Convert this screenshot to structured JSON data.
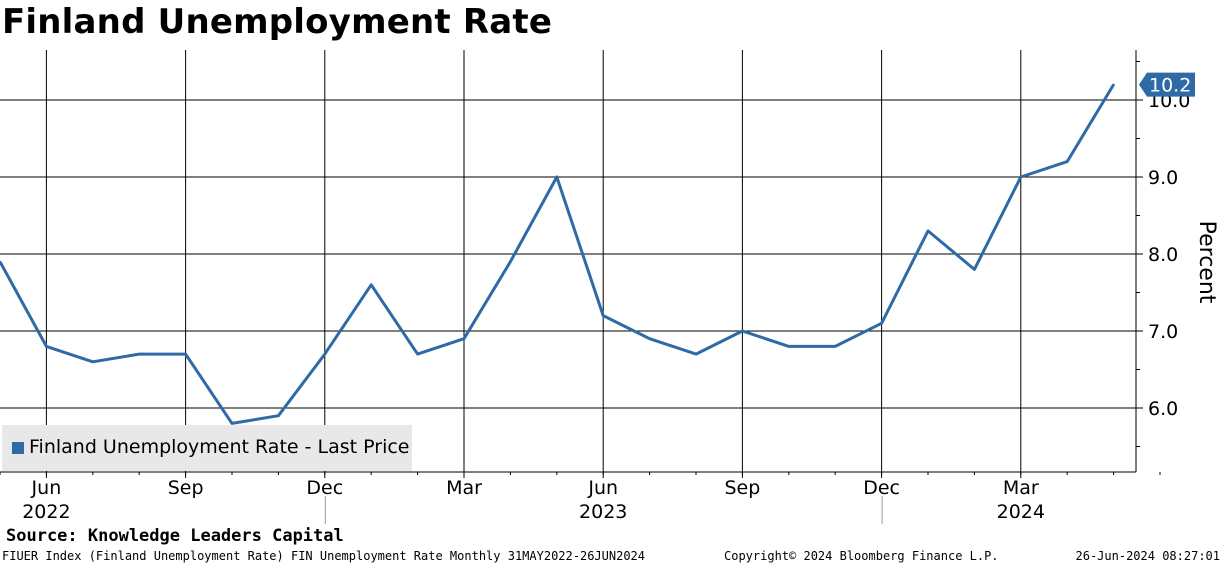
{
  "chart_data": {
    "type": "line",
    "title": "Finland Unemployment Rate",
    "ylabel": "Percent",
    "xlabel": "",
    "ylim": [
      5.2,
      10.6
    ],
    "y_ticks": [
      6.0,
      7.0,
      8.0,
      9.0,
      10.0
    ],
    "y_tick_labels": [
      "6.0",
      "7.0",
      "8.0",
      "9.0",
      "10.0"
    ],
    "x_ticks": [
      {
        "date": "2022-06",
        "label": "Jun",
        "year": "2022"
      },
      {
        "date": "2022-09",
        "label": "Sep",
        "year": ""
      },
      {
        "date": "2022-12",
        "label": "Dec",
        "year": ""
      },
      {
        "date": "2023-03",
        "label": "Mar",
        "year": ""
      },
      {
        "date": "2023-06",
        "label": "Jun",
        "year": "2023"
      },
      {
        "date": "2023-09",
        "label": "Sep",
        "year": ""
      },
      {
        "date": "2023-12",
        "label": "Dec",
        "year": ""
      },
      {
        "date": "2024-03",
        "label": "Mar",
        "year": "2024"
      }
    ],
    "grid": true,
    "legend_position": "bottom-left",
    "series": [
      {
        "name": "Finland Unemployment Rate - Last Price",
        "color": "#2e6aa6",
        "x": [
          "2022-05",
          "2022-06",
          "2022-07",
          "2022-08",
          "2022-09",
          "2022-10",
          "2022-11",
          "2022-12",
          "2023-01",
          "2023-02",
          "2023-03",
          "2023-04",
          "2023-05",
          "2023-06",
          "2023-07",
          "2023-08",
          "2023-09",
          "2023-10",
          "2023-11",
          "2023-12",
          "2024-01",
          "2024-02",
          "2024-03",
          "2024-04",
          "2024-05"
        ],
        "values": [
          7.9,
          6.8,
          6.6,
          6.7,
          6.7,
          5.8,
          5.9,
          6.7,
          7.6,
          6.7,
          6.9,
          7.9,
          9.0,
          7.2,
          6.9,
          6.7,
          7.0,
          6.8,
          6.8,
          7.1,
          8.3,
          7.8,
          9.0,
          9.2,
          10.2
        ]
      }
    ],
    "last_value_label": "10.2"
  },
  "source": "Source: Knowledge Leaders Capital",
  "footer": {
    "left": "FIUER Index (Finland Unemployment Rate) FIN Unemployment Rate  Monthly 31MAY2022-26JUN2024",
    "middle": "Copyright© 2024 Bloomberg Finance L.P.",
    "right": "26-Jun-2024 08:27:01"
  },
  "colors": {
    "line": "#2e6aa6",
    "label_bg": "#2e6aa6",
    "legend_bg": "#e8e8e8"
  }
}
